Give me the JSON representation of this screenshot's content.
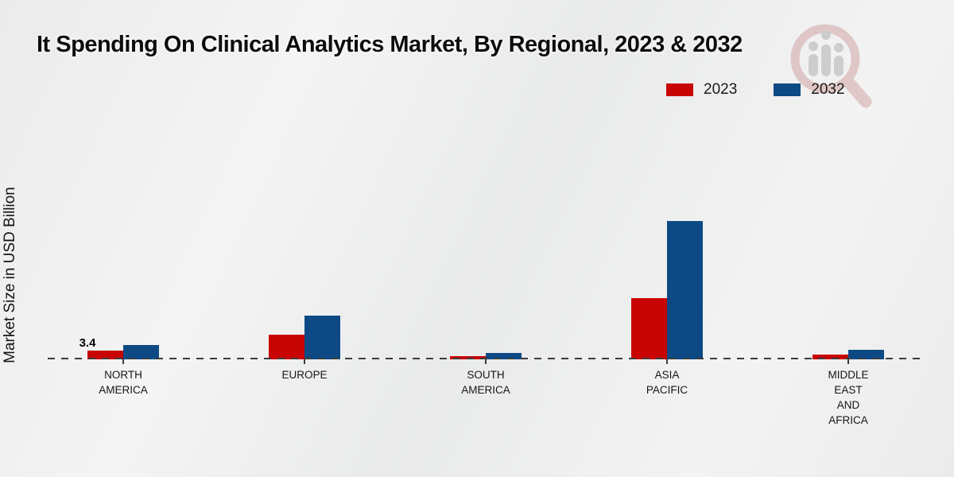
{
  "title": "It Spending On Clinical Analytics Market, By Regional, 2023 & 2032",
  "y_axis_label": "Market Size in USD Billion",
  "legend": [
    {
      "label": "2023",
      "color": "#c80404"
    },
    {
      "label": "2032",
      "color": "#0d4a85"
    }
  ],
  "colors": {
    "bar_2023": "#c80404",
    "bar_2032": "#0d4a85",
    "footer_bar": "#c00303",
    "baseline": "#3c3c3c",
    "background": "#eeeeee"
  },
  "watermark_name": "magnifier-bar-chart-logo",
  "chart_data": {
    "type": "bar",
    "title": "It Spending On Clinical Analytics Market, By Regional, 2023 & 2032",
    "xlabel": "",
    "ylabel": "Market Size in USD Billion",
    "categories": [
      "North America",
      "Europe",
      "South America",
      "Asia Pacific",
      "Middle East and Africa"
    ],
    "category_label_lines": [
      [
        "NORTH",
        "AMERICA"
      ],
      [
        "EUROPE"
      ],
      [
        "SOUTH",
        "AMERICA"
      ],
      [
        "ASIA",
        "PACIFIC"
      ],
      [
        "MIDDLE",
        "EAST",
        "AND",
        "AFRICA"
      ]
    ],
    "series": [
      {
        "name": "2023",
        "color": "#c80404",
        "values": [
          3.4,
          9.6,
          1.2,
          23.8,
          1.9
        ]
      },
      {
        "name": "2032",
        "color": "#0d4a85",
        "values": [
          5.6,
          17.0,
          2.5,
          53.8,
          3.7
        ]
      }
    ],
    "data_labels": [
      {
        "series": "2023",
        "category": "North America",
        "text": "3.4"
      }
    ],
    "baseline_value": 0,
    "ylim": [
      0,
      60
    ],
    "grid": false,
    "legend_position": "top-right",
    "axis_style": "dashed-zero-baseline-only"
  }
}
